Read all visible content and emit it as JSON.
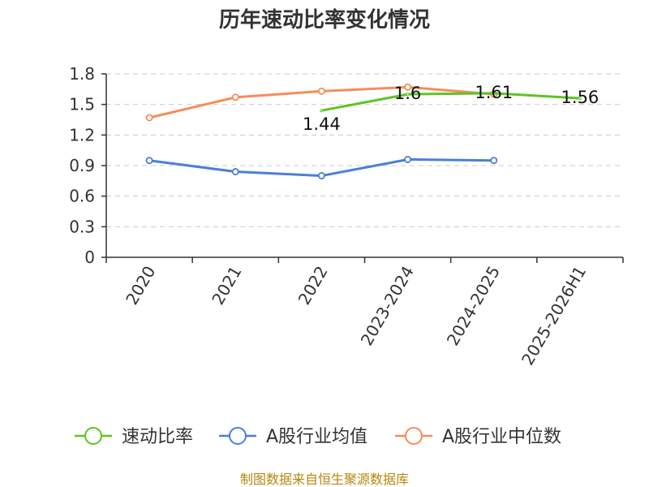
{
  "chart_data": {
    "type": "line",
    "title": "历年速动比率变化情况",
    "categories": [
      "2020",
      "2021",
      "2022",
      "2023-2024",
      "2024-2025",
      "2025-2026H1"
    ],
    "ylim": [
      0,
      1.8
    ],
    "yticks": [
      "0",
      "0.3",
      "0.6",
      "0.9",
      "1.2",
      "1.5",
      "1.8"
    ],
    "grid": true,
    "legend_position": "bottom",
    "series": [
      {
        "name": "速动比率",
        "color": "#5ec423",
        "values": [
          null,
          null,
          1.44,
          1.6,
          1.61,
          1.56
        ],
        "labels": [
          "",
          "",
          "1.44",
          "1.6",
          "1.61",
          "1.56"
        ]
      },
      {
        "name": "A股行业均值",
        "color": "#4a7fd9",
        "values": [
          0.95,
          0.84,
          0.8,
          0.96,
          0.95,
          null
        ],
        "labels": [
          "",
          "",
          "",
          "",
          "",
          ""
        ]
      },
      {
        "name": "A股行业中位数",
        "color": "#f58d5b",
        "values": [
          1.37,
          1.57,
          1.63,
          1.67,
          1.6,
          null
        ],
        "labels": [
          "",
          "",
          "",
          "",
          "",
          ""
        ]
      }
    ]
  },
  "footer": {
    "source": "制图数据来自恒生聚源数据库"
  }
}
